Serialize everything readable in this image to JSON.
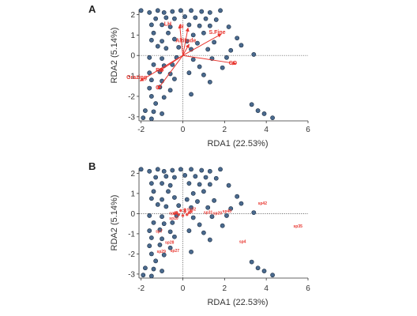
{
  "panels": [
    {
      "letter": "A",
      "xlabel": "RDA1 (22.53%)",
      "ylabel": "RDA2 (5.14%)",
      "xticks": [
        "-2",
        "0",
        "2",
        "4",
        "6"
      ],
      "yticks": [
        "2",
        "1",
        "0",
        "-1",
        "-2",
        "-3"
      ]
    },
    {
      "letter": "B",
      "xlabel": "RDA1 (22.53%)",
      "ylabel": "RDA2 (5.14%)",
      "xticks": [
        "-2",
        "0",
        "2",
        "4",
        "6"
      ],
      "yticks": [
        "2",
        "1",
        "0",
        "-1",
        "-2",
        "-3"
      ]
    }
  ],
  "colors": {
    "point_fill": "#4a6a8e",
    "point_stroke": "#1c2e44",
    "arrow": "#e8352e",
    "label": "#e8352e"
  },
  "chart_data": [
    {
      "type": "scatter",
      "panel": "A",
      "xlabel": "RDA1 (22.53%)",
      "ylabel": "RDA2 (5.14%)",
      "xlim": [
        -2.1,
        6.0
      ],
      "ylim": [
        -3.2,
        2.25
      ],
      "grid": false,
      "reference_lines": {
        "x": 0,
        "y": 0,
        "style": "dotted"
      },
      "sites": [
        [
          -2.0,
          2.2
        ],
        [
          -1.6,
          2.1
        ],
        [
          -1.2,
          2.2
        ],
        [
          -0.9,
          2.1
        ],
        [
          -0.5,
          2.15
        ],
        [
          -0.1,
          2.2
        ],
        [
          0.4,
          2.2
        ],
        [
          0.9,
          2.15
        ],
        [
          1.3,
          2.1
        ],
        [
          1.8,
          2.2
        ],
        [
          -1.3,
          1.8
        ],
        [
          -0.8,
          1.85
        ],
        [
          -0.4,
          1.8
        ],
        [
          0.1,
          1.9
        ],
        [
          0.6,
          1.85
        ],
        [
          1.1,
          1.8
        ],
        [
          1.6,
          1.75
        ],
        [
          -1.5,
          1.5
        ],
        [
          -1.0,
          1.5
        ],
        [
          -0.6,
          1.4
        ],
        [
          0.3,
          1.5
        ],
        [
          0.8,
          1.45
        ],
        [
          1.3,
          1.45
        ],
        [
          2.2,
          1.4
        ],
        [
          -1.4,
          1.1
        ],
        [
          -0.7,
          1.1
        ],
        [
          0.5,
          1.0
        ],
        [
          1.0,
          1.1
        ],
        [
          2.6,
          0.85
        ],
        [
          -1.5,
          0.75
        ],
        [
          -1.0,
          0.7
        ],
        [
          -0.4,
          0.8
        ],
        [
          0.2,
          0.7
        ],
        [
          0.7,
          0.6
        ],
        [
          1.5,
          0.65
        ],
        [
          2.8,
          0.5
        ],
        [
          -1.2,
          0.45
        ],
        [
          -0.8,
          0.35
        ],
        [
          -0.2,
          0.4
        ],
        [
          0.4,
          0.3
        ],
        [
          1.2,
          0.3
        ],
        [
          2.3,
          0.25
        ],
        [
          3.4,
          0.05
        ],
        [
          -1.6,
          -0.1
        ],
        [
          -1.0,
          -0.15
        ],
        [
          -0.3,
          -0.1
        ],
        [
          0.5,
          -0.2
        ],
        [
          1.4,
          -0.15
        ],
        [
          2.1,
          -0.1
        ],
        [
          -1.4,
          -0.45
        ],
        [
          -0.9,
          -0.5
        ],
        [
          -0.5,
          -0.45
        ],
        [
          0.8,
          -0.55
        ],
        [
          1.9,
          -0.6
        ],
        [
          -1.6,
          -0.85
        ],
        [
          -1.1,
          -0.8
        ],
        [
          -0.6,
          -0.9
        ],
        [
          0.3,
          -0.85
        ],
        [
          1.0,
          -0.95
        ],
        [
          -1.5,
          -1.2
        ],
        [
          -1.0,
          -1.25
        ],
        [
          -0.4,
          -1.15
        ],
        [
          0.4,
          -1.9
        ],
        [
          1.3,
          -1.3
        ],
        [
          -1.6,
          -1.6
        ],
        [
          -1.1,
          -1.55
        ],
        [
          -0.6,
          -1.7
        ],
        [
          -1.5,
          -2.0
        ],
        [
          -0.9,
          -2.05
        ],
        [
          -1.3,
          -2.35
        ],
        [
          -1.8,
          -2.7
        ],
        [
          -1.4,
          -2.75
        ],
        [
          -1.0,
          -2.85
        ],
        [
          -1.9,
          -3.05
        ],
        [
          -1.5,
          -3.1
        ],
        [
          3.3,
          -2.4
        ],
        [
          3.6,
          -2.7
        ],
        [
          3.9,
          -2.85
        ],
        [
          4.3,
          -3.05
        ]
      ],
      "env_vectors": [
        {
          "label": "LH",
          "end": [
            -0.15,
            1.5
          ],
          "label_at": [
            -0.9,
            1.45
          ]
        },
        {
          "label": "N",
          "end": [
            0.25,
            1.35
          ],
          "label_at": [
            -0.15,
            1.35
          ]
        },
        {
          "label": "Altitude",
          "end": [
            0.3,
            0.55
          ],
          "label_at": [
            -0.35,
            0.65
          ]
        },
        {
          "label": "S.Fine",
          "end": [
            1.85,
            1.05
          ],
          "label_at": [
            1.25,
            1.05
          ]
        },
        {
          "label": "Grazing",
          "end": [
            -2.05,
            -1.25
          ],
          "label_at": [
            -2.7,
            -1.15
          ]
        },
        {
          "label": "CO",
          "end": [
            2.55,
            -0.4
          ],
          "label_at": [
            2.2,
            -0.45
          ]
        },
        {
          "label": "RD",
          "end": [
            -1.1,
            -0.75
          ],
          "label_at": [
            -1.3,
            -0.8
          ]
        },
        {
          "label": "C",
          "end": [
            -1.2,
            -1.65
          ],
          "label_at": [
            -1.3,
            -1.65
          ]
        }
      ]
    },
    {
      "type": "scatter",
      "panel": "B",
      "xlabel": "RDA1 (22.53%)",
      "ylabel": "RDA2 (5.14%)",
      "xlim": [
        -2.1,
        6.0
      ],
      "ylim": [
        -3.2,
        2.25
      ],
      "grid": false,
      "reference_lines": {
        "x": 0,
        "y": 0,
        "style": "dotted"
      },
      "sites": [
        [
          -2.0,
          2.2
        ],
        [
          -1.6,
          2.1
        ],
        [
          -1.2,
          2.2
        ],
        [
          -0.9,
          2.1
        ],
        [
          -0.5,
          2.15
        ],
        [
          -0.1,
          2.2
        ],
        [
          0.4,
          2.2
        ],
        [
          0.9,
          2.15
        ],
        [
          1.3,
          2.1
        ],
        [
          1.8,
          2.2
        ],
        [
          -1.3,
          1.8
        ],
        [
          -0.8,
          1.85
        ],
        [
          -0.4,
          1.8
        ],
        [
          0.1,
          1.9
        ],
        [
          0.6,
          1.85
        ],
        [
          1.1,
          1.8
        ],
        [
          1.6,
          1.75
        ],
        [
          -1.5,
          1.5
        ],
        [
          -1.0,
          1.5
        ],
        [
          -0.6,
          1.4
        ],
        [
          0.3,
          1.5
        ],
        [
          0.8,
          1.45
        ],
        [
          1.3,
          1.45
        ],
        [
          2.2,
          1.4
        ],
        [
          -1.4,
          1.1
        ],
        [
          -0.7,
          1.1
        ],
        [
          0.5,
          1.0
        ],
        [
          1.0,
          1.1
        ],
        [
          2.6,
          0.85
        ],
        [
          -1.5,
          0.75
        ],
        [
          -1.0,
          0.7
        ],
        [
          -0.4,
          0.8
        ],
        [
          0.2,
          0.7
        ],
        [
          0.7,
          0.6
        ],
        [
          1.5,
          0.65
        ],
        [
          2.8,
          0.5
        ],
        [
          -1.2,
          0.45
        ],
        [
          -0.8,
          0.35
        ],
        [
          -0.2,
          0.4
        ],
        [
          0.4,
          0.3
        ],
        [
          1.2,
          0.3
        ],
        [
          2.3,
          0.25
        ],
        [
          3.4,
          0.05
        ],
        [
          -1.6,
          -0.1
        ],
        [
          -1.0,
          -0.15
        ],
        [
          -0.3,
          -0.1
        ],
        [
          0.5,
          -0.2
        ],
        [
          1.4,
          -0.15
        ],
        [
          2.1,
          -0.1
        ],
        [
          -1.4,
          -0.45
        ],
        [
          -0.9,
          -0.5
        ],
        [
          -0.5,
          -0.45
        ],
        [
          0.8,
          -0.55
        ],
        [
          1.9,
          -0.6
        ],
        [
          -1.6,
          -0.85
        ],
        [
          -1.1,
          -0.8
        ],
        [
          -0.6,
          -0.9
        ],
        [
          0.3,
          -0.85
        ],
        [
          1.0,
          -0.95
        ],
        [
          -1.5,
          -1.2
        ],
        [
          -1.0,
          -1.25
        ],
        [
          -0.4,
          -1.15
        ],
        [
          0.4,
          -1.9
        ],
        [
          1.3,
          -1.3
        ],
        [
          -1.6,
          -1.6
        ],
        [
          -1.1,
          -1.55
        ],
        [
          -0.6,
          -1.7
        ],
        [
          -1.5,
          -2.0
        ],
        [
          -0.9,
          -2.05
        ],
        [
          -1.3,
          -2.35
        ],
        [
          -1.8,
          -2.7
        ],
        [
          -1.4,
          -2.75
        ],
        [
          -1.0,
          -2.85
        ],
        [
          -1.9,
          -3.05
        ],
        [
          -1.5,
          -3.1
        ],
        [
          3.3,
          -2.4
        ],
        [
          3.6,
          -2.7
        ],
        [
          3.9,
          -2.85
        ],
        [
          4.3,
          -3.05
        ]
      ],
      "species_cluster": [
        [
          -0.3,
          0.05
        ],
        [
          -0.1,
          0.15
        ],
        [
          0.1,
          0.1
        ],
        [
          0.3,
          0.05
        ],
        [
          0.0,
          -0.1
        ],
        [
          -0.2,
          -0.05
        ],
        [
          0.2,
          -0.05
        ],
        [
          0.4,
          0.1
        ],
        [
          -0.4,
          0.0
        ],
        [
          0.1,
          0.2
        ]
      ],
      "species_labels": [
        {
          "label": "sp42",
          "at": [
            3.6,
            0.45
          ]
        },
        {
          "label": "sp35",
          "at": [
            5.3,
            -0.7
          ]
        },
        {
          "label": "sp40",
          "at": [
            1.9,
            0.05
          ]
        },
        {
          "label": "sp32",
          "at": [
            0.2,
            0.15
          ]
        },
        {
          "label": "sp31",
          "at": [
            1.0,
            0.0
          ]
        },
        {
          "label": "sp20",
          "at": [
            1.45,
            -0.05
          ]
        },
        {
          "label": "sp23",
          "at": [
            -0.65,
            -0.05
          ]
        },
        {
          "label": "sp10",
          "at": [
            -0.65,
            -0.3
          ]
        },
        {
          "label": "sp7",
          "at": [
            -1.3,
            -0.95
          ]
        },
        {
          "label": "sp4",
          "at": [
            2.7,
            -1.45
          ]
        },
        {
          "label": "sp28",
          "at": [
            -0.85,
            -1.5
          ]
        },
        {
          "label": "sp29",
          "at": [
            -1.25,
            -1.95
          ]
        },
        {
          "label": "sp27",
          "at": [
            -0.6,
            -1.9
          ]
        }
      ]
    }
  ]
}
